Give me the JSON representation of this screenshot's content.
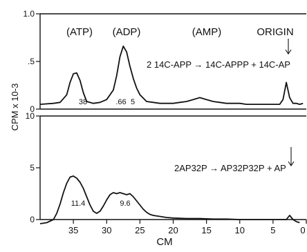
{
  "chart_data": [
    {
      "type": "line",
      "title": "",
      "xlabel": "CM",
      "ylabel": "CPM x 10-3",
      "xlim": [
        40,
        0
      ],
      "ylim": [
        0,
        1.0
      ],
      "ytick_labels": [
        "0",
        ".5",
        "1.0"
      ],
      "annotations": {
        "peak_labels": [
          "(ATP)",
          "(ADP)",
          "(AMP)",
          "ORIGIN"
        ],
        "reaction": "2 14C-APP → 14C-APPP + 14C-AP",
        "values": [
          "38",
          ".66",
          "5"
        ]
      },
      "series": [
        {
          "x": [
            40,
            38,
            37,
            36,
            35.5,
            35,
            34.5,
            34,
            33.5,
            33,
            32,
            31,
            30,
            29,
            28.5,
            28,
            27.5,
            27,
            26.5,
            26,
            25.5,
            25,
            24,
            23,
            22,
            21,
            20,
            19,
            18,
            17,
            16,
            15,
            14,
            13,
            12,
            11,
            10,
            9,
            8,
            7,
            6,
            5,
            4,
            3.5,
            3,
            2.5,
            2,
            1.5,
            1,
            0.5
          ],
          "y": [
            0.05,
            0.06,
            0.07,
            0.15,
            0.28,
            0.37,
            0.38,
            0.3,
            0.17,
            0.08,
            0.06,
            0.07,
            0.1,
            0.2,
            0.35,
            0.55,
            0.66,
            0.6,
            0.45,
            0.32,
            0.22,
            0.15,
            0.08,
            0.07,
            0.06,
            0.06,
            0.06,
            0.07,
            0.08,
            0.1,
            0.12,
            0.1,
            0.08,
            0.07,
            0.06,
            0.06,
            0.06,
            0.05,
            0.05,
            0.05,
            0.05,
            0.05,
            0.05,
            0.1,
            0.28,
            0.12,
            0.06,
            0.06,
            0.05,
            0.06
          ]
        }
      ]
    },
    {
      "type": "line",
      "title": "",
      "xlabel": "CM",
      "ylabel": "",
      "xlim": [
        40,
        0
      ],
      "ylim": [
        0,
        10
      ],
      "ytick_labels": [
        "0",
        "5",
        "10"
      ],
      "xtick_labels": [
        "35",
        "30",
        "25",
        "20",
        "15",
        "10",
        "5",
        "0"
      ],
      "xtick_values": [
        35,
        30,
        25,
        20,
        15,
        10,
        5,
        0
      ],
      "annotations": {
        "reaction": "2AP32P → AP32P32P + AP",
        "values": [
          "11.4",
          "9.6"
        ]
      },
      "series": [
        {
          "x": [
            40,
            39,
            38,
            37.5,
            37,
            36.5,
            36,
            35.5,
            35,
            34.5,
            34,
            33.5,
            33,
            32.5,
            32,
            31.5,
            31,
            30.5,
            30,
            29.5,
            29,
            28.5,
            28,
            27.5,
            27,
            26.5,
            26,
            25.5,
            25,
            24.5,
            24,
            23.5,
            23,
            22,
            21,
            20,
            18,
            16,
            14,
            12,
            10,
            8,
            6,
            4,
            3,
            2.5,
            2,
            1.5,
            1
          ],
          "y": [
            -0.4,
            -0.3,
            0.0,
            0.6,
            1.5,
            2.6,
            3.5,
            4.1,
            4.2,
            4.0,
            3.6,
            3.0,
            2.2,
            1.4,
            0.8,
            0.6,
            0.8,
            1.3,
            1.9,
            2.4,
            2.6,
            2.5,
            2.6,
            2.5,
            2.4,
            2.5,
            2.2,
            1.8,
            1.4,
            1.0,
            0.7,
            0.5,
            0.4,
            0.3,
            0.2,
            0.15,
            0.1,
            0.1,
            0.05,
            0.05,
            0.0,
            0.0,
            0.0,
            0.0,
            0.0,
            0.4,
            0.0,
            -0.2,
            -0.3
          ]
        }
      ]
    }
  ]
}
